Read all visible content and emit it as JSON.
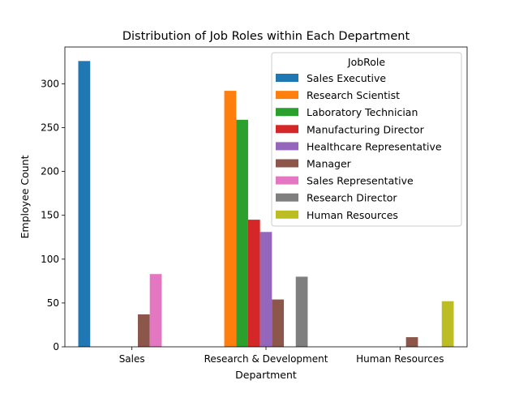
{
  "chart_data": {
    "type": "bar",
    "title": "Distribution of Job Roles within Each Department",
    "xlabel": "Department",
    "ylabel": "Employee Count",
    "categories": [
      "Sales",
      "Research & Development",
      "Human Resources"
    ],
    "yticks": [
      0,
      50,
      100,
      150,
      200,
      250,
      300
    ],
    "ylim": [
      0,
      342
    ],
    "legend": {
      "title": "JobRole",
      "placement": "top-right"
    },
    "series": [
      {
        "name": "Sales Executive",
        "color": "#1f77b4",
        "values": [
          326,
          0,
          0
        ]
      },
      {
        "name": "Research Scientist",
        "color": "#ff7f0e",
        "values": [
          0,
          292,
          0
        ]
      },
      {
        "name": "Laboratory Technician",
        "color": "#2ca02c",
        "values": [
          0,
          259,
          0
        ]
      },
      {
        "name": "Manufacturing Director",
        "color": "#d62728",
        "values": [
          0,
          145,
          0
        ]
      },
      {
        "name": "Healthcare Representative",
        "color": "#9467bd",
        "values": [
          0,
          131,
          0
        ]
      },
      {
        "name": "Manager",
        "color": "#8c564b",
        "values": [
          37,
          54,
          11
        ]
      },
      {
        "name": "Sales Representative",
        "color": "#e377c2",
        "values": [
          83,
          0,
          0
        ]
      },
      {
        "name": "Research Director",
        "color": "#7f7f7f",
        "values": [
          0,
          80,
          0
        ]
      },
      {
        "name": "Human Resources",
        "color": "#bcbd22",
        "values": [
          0,
          0,
          52
        ]
      }
    ]
  }
}
